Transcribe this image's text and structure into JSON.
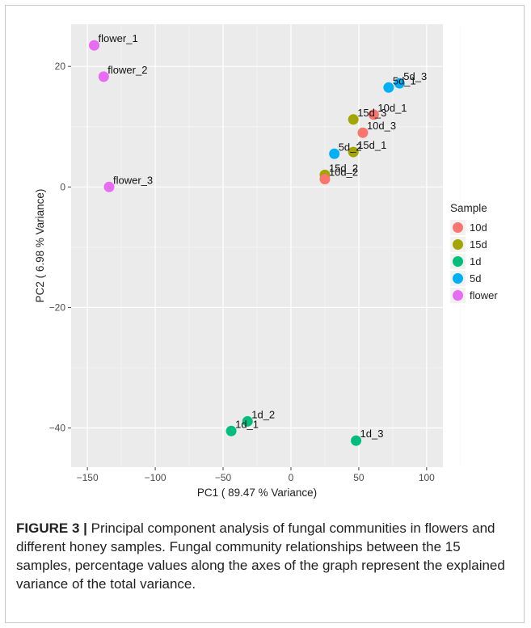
{
  "chart_data": {
    "type": "scatter",
    "xlabel": "PC1 ( 89.47  % Variance)",
    "ylabel": "PC2 ( 6.98  % Variance)",
    "xlim": [
      -162,
      112
    ],
    "ylim": [
      -46.5,
      27
    ],
    "xticks": [
      -150,
      -100,
      -50,
      0,
      50,
      100
    ],
    "yticks": [
      -40,
      -20,
      0,
      20
    ],
    "xtick_labels": [
      "−150",
      "−100",
      "−50",
      "0",
      "50",
      "100"
    ],
    "ytick_labels": [
      "−40",
      "−20",
      "0",
      "20"
    ],
    "grid": true,
    "legend": {
      "title": "Sample",
      "placement": "right",
      "entries": [
        {
          "label": "10d",
          "color": "#F8766D"
        },
        {
          "label": "15d",
          "color": "#A3A500"
        },
        {
          "label": "1d",
          "color": "#00BF7D"
        },
        {
          "label": "5d",
          "color": "#00B0F6"
        },
        {
          "label": "flower",
          "color": "#E76BF3"
        }
      ]
    },
    "points": [
      {
        "label": "flower_1",
        "group": "flower",
        "x": -145,
        "y": 23.5
      },
      {
        "label": "flower_2",
        "group": "flower",
        "x": -138,
        "y": 18.3
      },
      {
        "label": "flower_3",
        "group": "flower",
        "x": -134,
        "y": 0
      },
      {
        "label": "5d_3",
        "group": "5d",
        "x": 80,
        "y": 17.2
      },
      {
        "label": "5d_1",
        "group": "5d",
        "x": 72,
        "y": 16.5
      },
      {
        "label": "10d_1",
        "group": "10d",
        "x": 61,
        "y": 12
      },
      {
        "label": "15d_3",
        "group": "15d",
        "x": 46,
        "y": 11.2
      },
      {
        "label": "10d_3",
        "group": "10d",
        "x": 53,
        "y": 9
      },
      {
        "label": "5d_2",
        "group": "5d",
        "x": 32,
        "y": 5.5
      },
      {
        "label": "15d_1",
        "group": "15d",
        "x": 46,
        "y": 5.8
      },
      {
        "label": "15d_2",
        "group": "15d",
        "x": 25,
        "y": 2
      },
      {
        "label": "10d_2",
        "group": "10d",
        "x": 25,
        "y": 1.3
      },
      {
        "label": "1d_2",
        "group": "1d",
        "x": -32,
        "y": -38.9
      },
      {
        "label": "1d_1",
        "group": "1d",
        "x": -44,
        "y": -40.5
      },
      {
        "label": "1d_3",
        "group": "1d",
        "x": 48,
        "y": -42.1
      }
    ]
  },
  "caption": {
    "title": "FIGURE 3 |",
    "text": " Principal component analysis of fungal communities in flowers and different honey samples. Fungal community relationships between the 15 samples, percentage values along the axes of the graph represent the explained variance of the total variance."
  }
}
